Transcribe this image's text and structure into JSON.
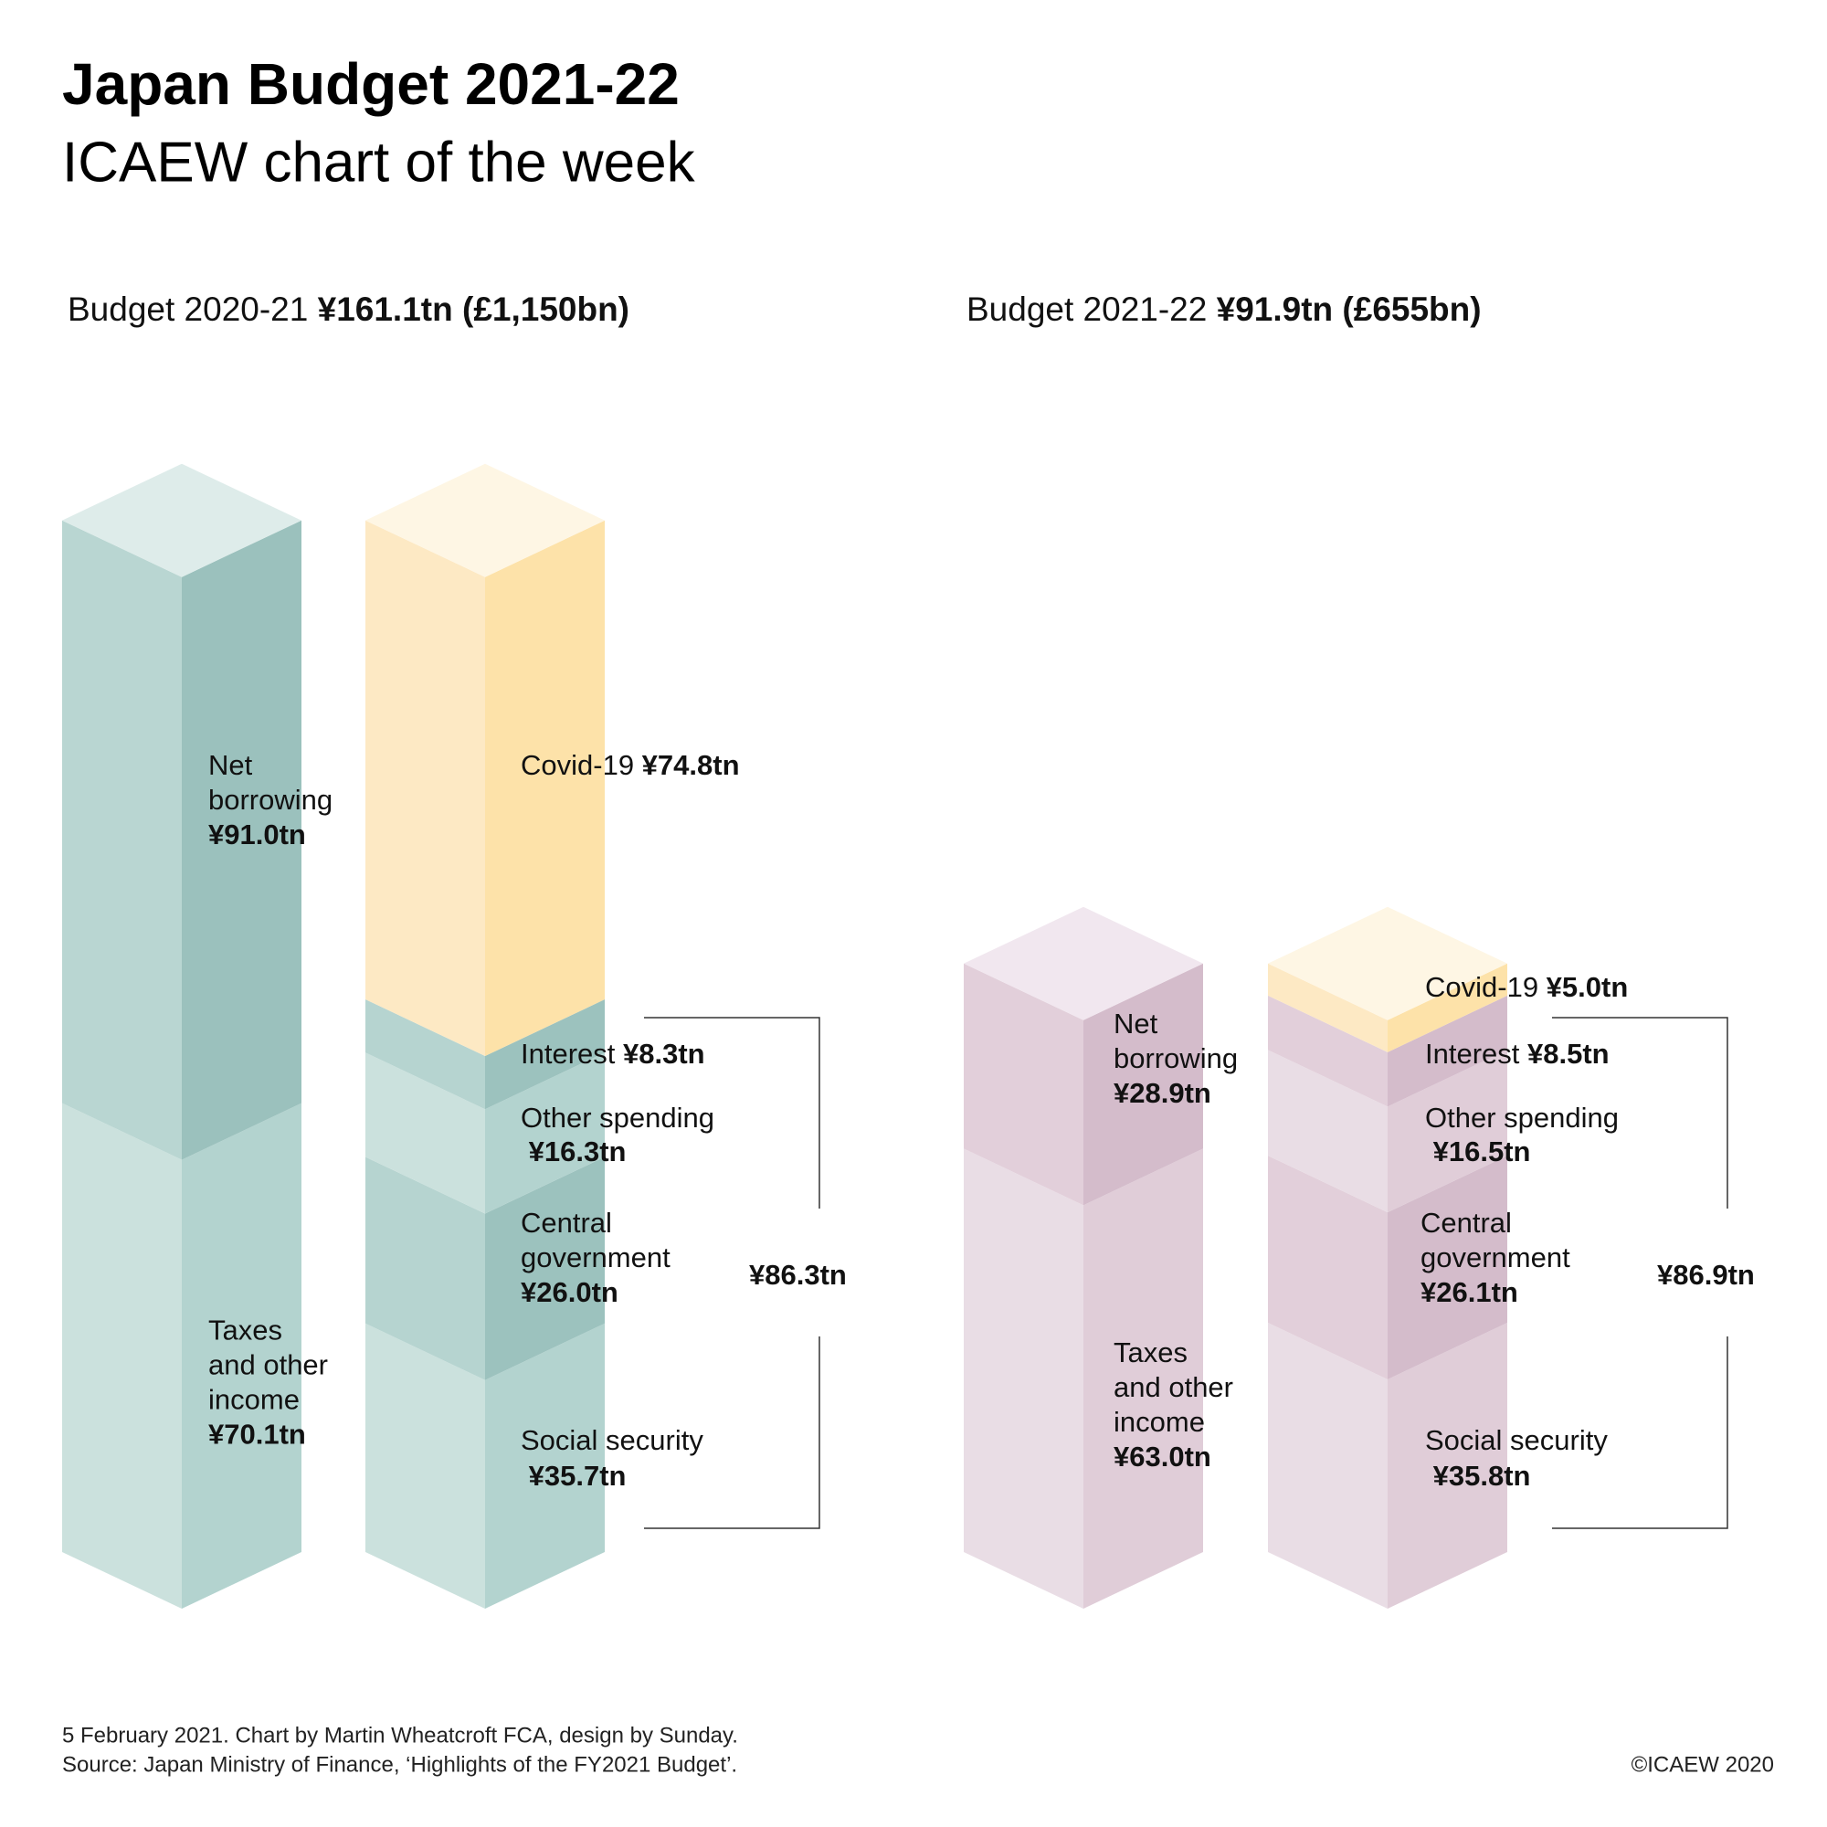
{
  "title": "Japan Budget 2021-22",
  "subtitle": "ICAEW chart of the week",
  "footer": {
    "line1": "5 February 2021.   Chart by Martin Wheatcroft FCA, design by Sunday.",
    "line2": "Source: Japan Ministry of Finance, ‘Highlights of the FY2021 Budget’.",
    "copyright": "©ICAEW 2020"
  },
  "chart_data": {
    "type": "bar",
    "subtype": "stacked isometric columns",
    "unit": "¥tn",
    "panels": [
      {
        "header": "Budget 2020-21",
        "header_total": "¥161.1tn (£1,150bn)",
        "total": 161.1,
        "bracket_label": "¥86.3tn",
        "bracket_value": 86.3,
        "income": [
          {
            "name": "Taxes and other income",
            "lines": [
              "Taxes",
              "and other",
              "income"
            ],
            "label": "¥70.1tn",
            "value": 70.1,
            "colors": [
              "#cbe1dd",
              "#b3d3cf"
            ]
          },
          {
            "name": "Net borrowing",
            "lines": [
              "Net",
              "borrowing"
            ],
            "label": "¥91.0tn",
            "value": 91.0,
            "colors": [
              "#b9d6d2",
              "#9bc1bd"
            ]
          }
        ],
        "income_top_color": "#deecea",
        "spending": [
          {
            "name": "Social security",
            "lines": [
              "Social security"
            ],
            "label": "¥35.7tn",
            "value": 35.7,
            "colors": [
              "#cbe1dd",
              "#b3d3cf"
            ]
          },
          {
            "name": "Central government",
            "lines": [
              "Central",
              "government"
            ],
            "label": "¥26.0tn",
            "value": 26.0,
            "colors": [
              "#b6d4d0",
              "#9cc2be"
            ]
          },
          {
            "name": "Other spending",
            "lines": [
              "Other spending"
            ],
            "label": "¥16.3tn",
            "value": 16.3,
            "colors": [
              "#cbe1dd",
              "#b3d3cf"
            ]
          },
          {
            "name": "Interest",
            "lines": [
              "Interest"
            ],
            "label": "¥8.3tn",
            "value": 8.3,
            "colors": [
              "#b6d4d0",
              "#9cc2be"
            ]
          },
          {
            "name": "Covid-19",
            "lines": [
              "Covid-19"
            ],
            "label": "¥74.8tn",
            "value": 74.8,
            "colors": [
              "#fde9c4",
              "#fde2a9"
            ]
          }
        ],
        "spending_top_color": "#fef6e4"
      },
      {
        "header": "Budget 2021-22",
        "header_total": "¥91.9tn (£655bn)",
        "total": 91.9,
        "bracket_label": "¥86.9tn",
        "bracket_value": 86.9,
        "income": [
          {
            "name": "Taxes and other income",
            "lines": [
              "Taxes",
              "and other",
              "income"
            ],
            "label": "¥63.0tn",
            "value": 63.0,
            "colors": [
              "#e9dde5",
              "#e0cdd8"
            ]
          },
          {
            "name": "Net borrowing",
            "lines": [
              "Net",
              "borrowing"
            ],
            "label": "¥28.9tn",
            "value": 28.9,
            "colors": [
              "#e2cfda",
              "#d4bccb"
            ]
          }
        ],
        "income_top_color": "#f1e7ef",
        "spending": [
          {
            "name": "Social security",
            "lines": [
              "Social security"
            ],
            "label": "¥35.8tn",
            "value": 35.8,
            "colors": [
              "#e9dde5",
              "#e0cdd8"
            ]
          },
          {
            "name": "Central government",
            "lines": [
              "Central",
              "government"
            ],
            "label": "¥26.1tn",
            "value": 26.1,
            "colors": [
              "#e2cfda",
              "#d4bccb"
            ]
          },
          {
            "name": "Other spending",
            "lines": [
              "Other spending"
            ],
            "label": "¥16.5tn",
            "value": 16.5,
            "colors": [
              "#e9dde5",
              "#e0cdd8"
            ]
          },
          {
            "name": "Interest",
            "lines": [
              "Interest"
            ],
            "label": "¥8.5tn",
            "value": 8.5,
            "colors": [
              "#e2cfda",
              "#d4bccb"
            ]
          },
          {
            "name": "Covid-19",
            "lines": [
              "Covid-19"
            ],
            "label": "¥5.0tn",
            "value": 5.0,
            "colors": [
              "#fde9c4",
              "#fde2a9"
            ]
          }
        ],
        "spending_top_color": "#fef6e4"
      }
    ]
  }
}
